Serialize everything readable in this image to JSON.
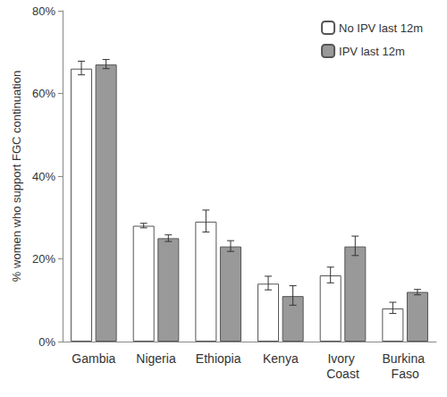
{
  "chart_data": {
    "type": "bar",
    "y_label": "% women who support FGC continuation",
    "categories": [
      "Gambia",
      "Nigeria",
      "Ethiopia",
      "Kenya",
      "Ivory Coast",
      "Burkina Faso"
    ],
    "series": [
      {
        "name": "No IPV last 12m",
        "color": "#ffffff",
        "values": [
          66,
          28,
          29,
          14,
          16,
          8
        ],
        "error_low": [
          64.5,
          27.5,
          26.5,
          12.5,
          14.2,
          6.8
        ],
        "error_high": [
          67.8,
          28.6,
          31.8,
          15.8,
          18,
          9.5
        ]
      },
      {
        "name": "IPV last 12m",
        "color": "#999999",
        "values": [
          67,
          25,
          23,
          11,
          23,
          12
        ],
        "error_low": [
          66,
          24.2,
          21.8,
          8.8,
          20.8,
          11.3
        ],
        "error_high": [
          68.2,
          25.8,
          24.4,
          13.5,
          25.5,
          12.6
        ]
      }
    ],
    "ylim": [
      0,
      80
    ],
    "yticks": [
      {
        "value": 0,
        "label": "0%"
      },
      {
        "value": 20,
        "label": "20%"
      },
      {
        "value": 40,
        "label": "40%"
      },
      {
        "value": 60,
        "label": "60%"
      },
      {
        "value": 80,
        "label": "80%"
      }
    ],
    "grid": false,
    "legend": "top-right"
  }
}
